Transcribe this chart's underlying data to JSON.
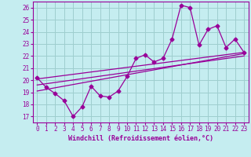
{
  "xlabel": "Windchill (Refroidissement éolien,°C)",
  "bg_color": "#c5edf0",
  "grid_color": "#9ecece",
  "line_color": "#990099",
  "xlim": [
    -0.5,
    23.5
  ],
  "ylim": [
    16.5,
    26.5
  ],
  "xticks": [
    0,
    1,
    2,
    3,
    4,
    5,
    6,
    7,
    8,
    9,
    10,
    11,
    12,
    13,
    14,
    15,
    16,
    17,
    18,
    19,
    20,
    21,
    22,
    23
  ],
  "yticks": [
    17,
    18,
    19,
    20,
    21,
    22,
    23,
    24,
    25,
    26
  ],
  "data_x": [
    0,
    1,
    2,
    3,
    4,
    5,
    6,
    7,
    8,
    9,
    10,
    11,
    12,
    13,
    14,
    15,
    16,
    17,
    18,
    19,
    20,
    21,
    22,
    23
  ],
  "data_y": [
    20.2,
    19.4,
    18.9,
    18.3,
    17.0,
    17.8,
    19.5,
    18.7,
    18.6,
    19.1,
    20.3,
    21.8,
    22.1,
    21.5,
    21.8,
    23.4,
    26.2,
    26.0,
    22.9,
    24.2,
    24.5,
    22.7,
    23.4,
    22.3
  ],
  "trend1_x": [
    0,
    23
  ],
  "trend1_y": [
    20.1,
    22.3
  ],
  "trend2_x": [
    0,
    23
  ],
  "trend2_y": [
    19.6,
    22.0
  ],
  "trend3_x": [
    0,
    23
  ],
  "trend3_y": [
    19.1,
    22.2
  ],
  "marker": "D",
  "markersize": 2.5,
  "linewidth": 0.9,
  "xlabel_fontsize": 6,
  "tick_fontsize": 5.5
}
